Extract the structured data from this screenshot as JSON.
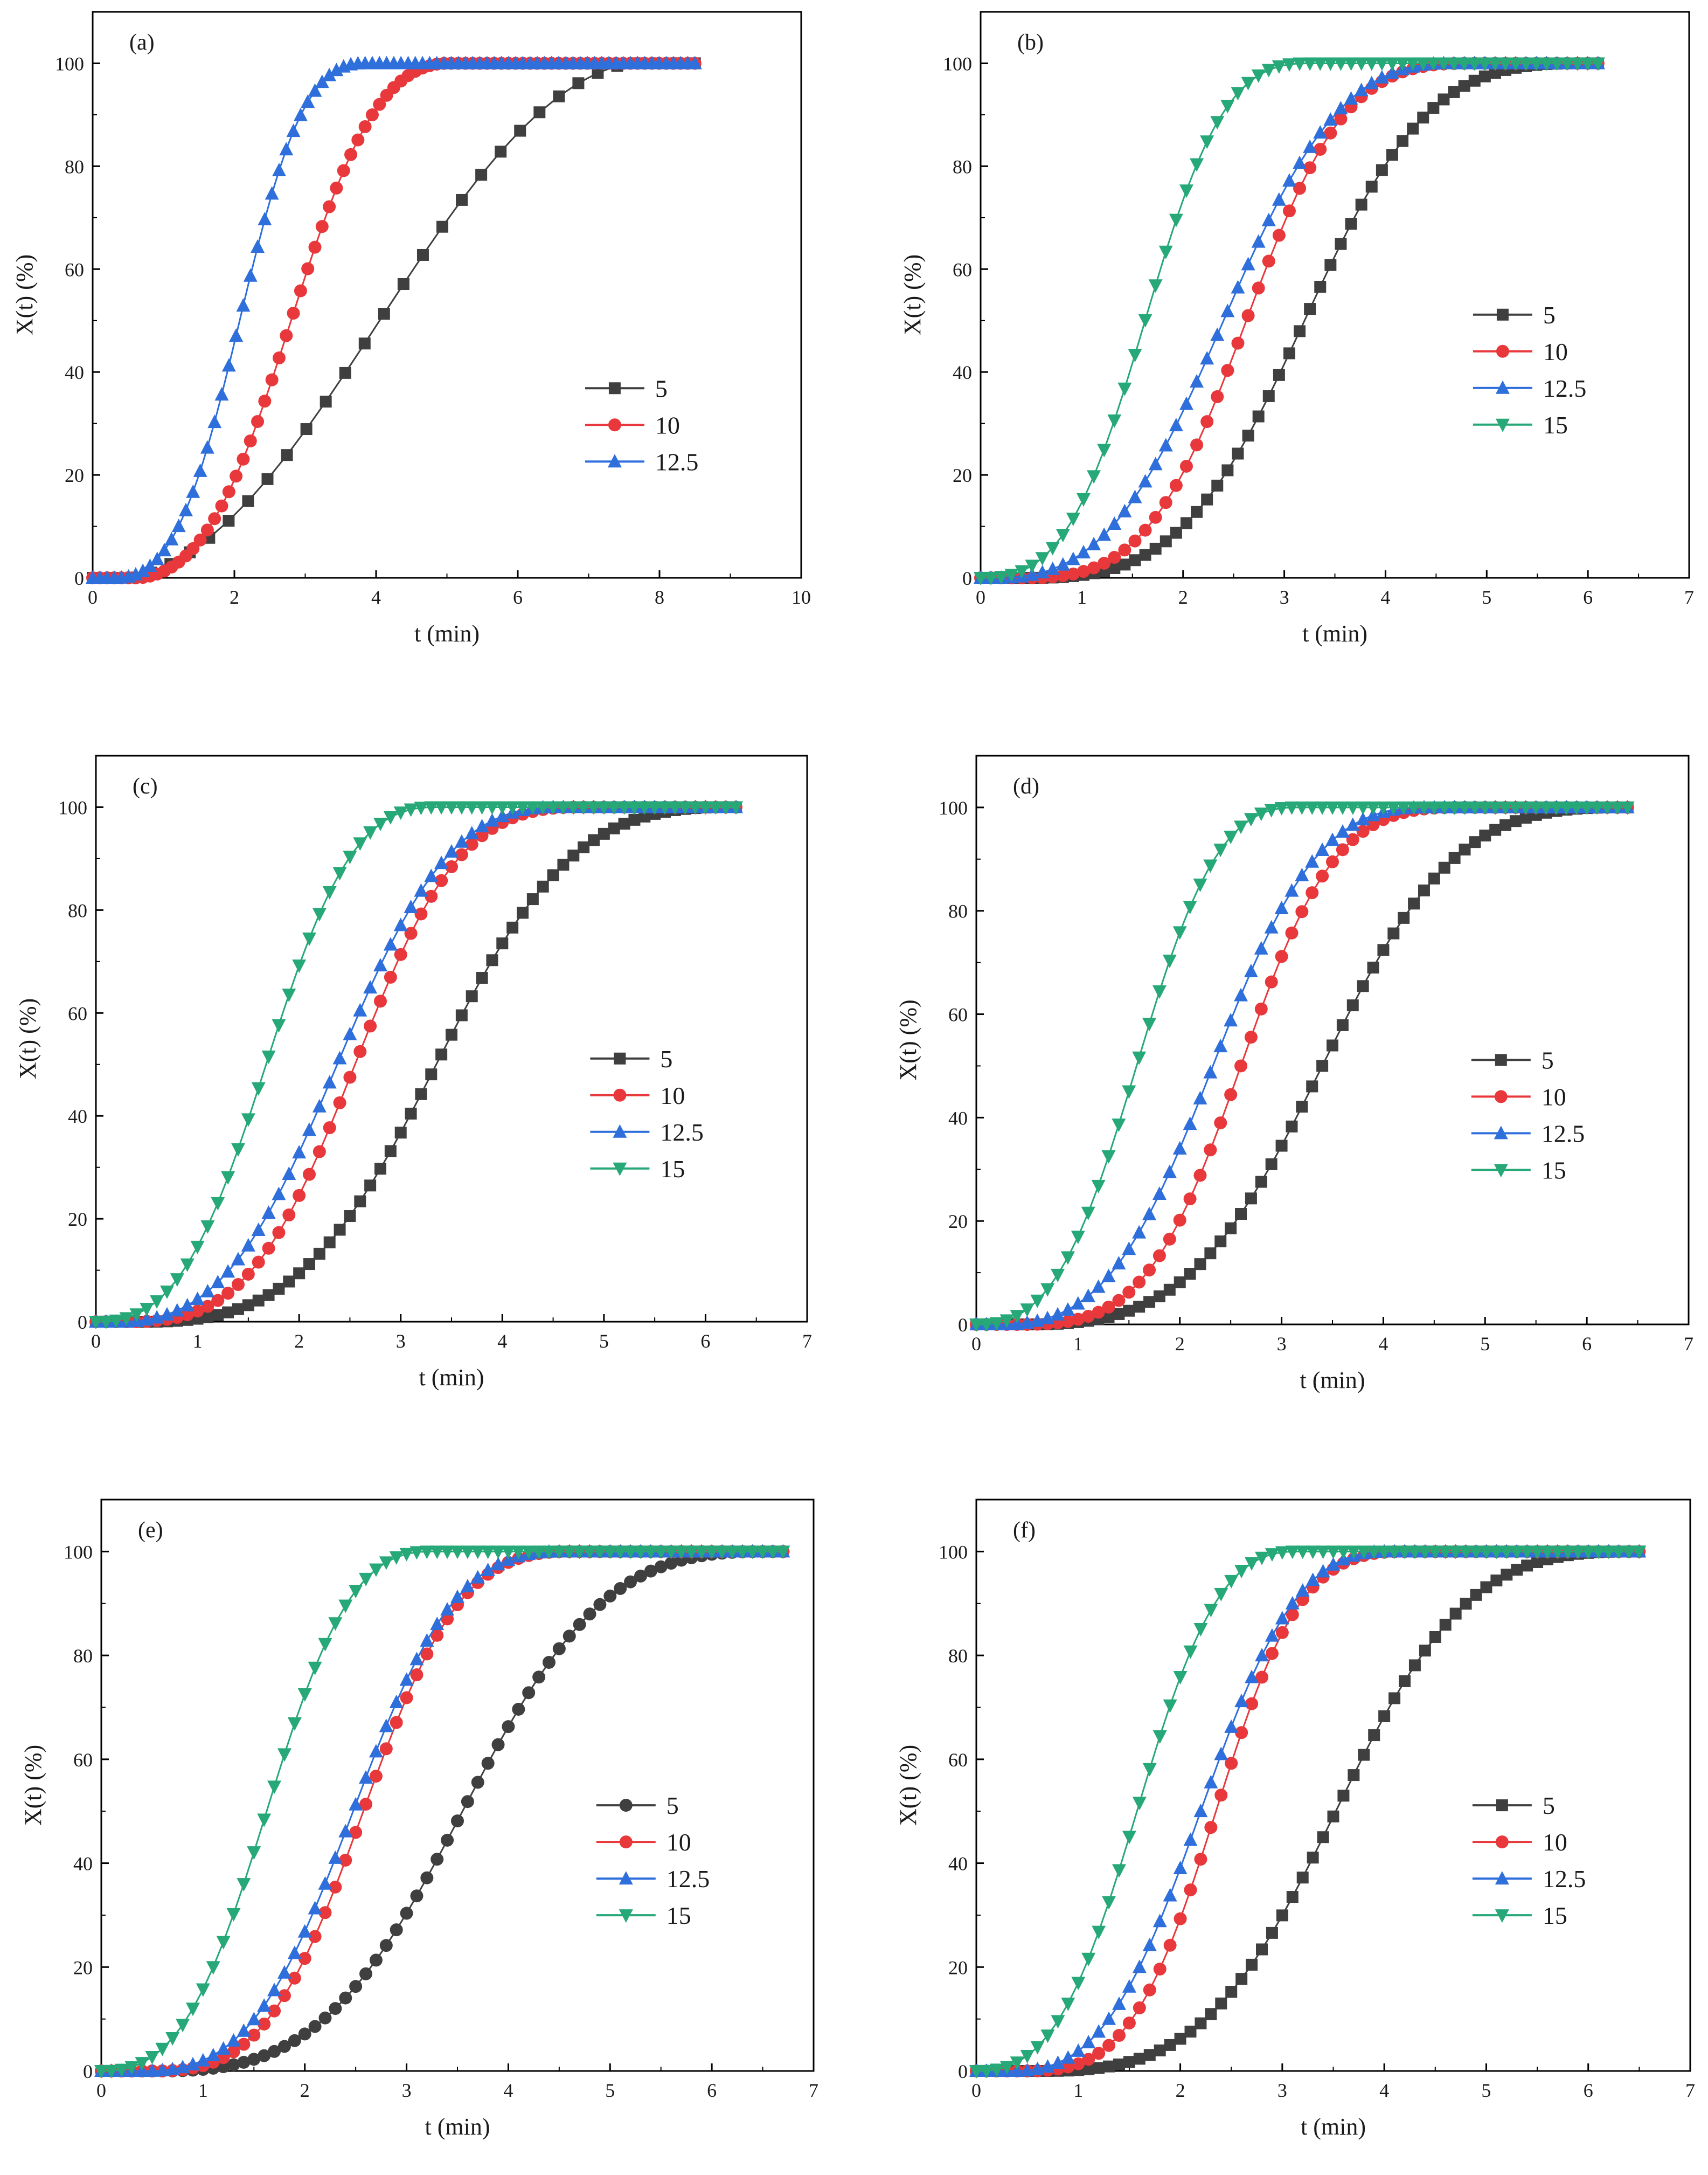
{
  "colors": {
    "s5": "#3f3f3f",
    "s10": "#e8383b",
    "s12_5": "#2f6fdc",
    "s15": "#27a878"
  },
  "chart_data": [
    {
      "type": "line",
      "panel_label": "(a)",
      "xlabel": "t (min)",
      "ylabel": "X(t) (%)",
      "xlim": [
        0,
        10
      ],
      "ylim": [
        0,
        110
      ],
      "xticks": [
        "0",
        "2",
        "4",
        "6",
        "8",
        "10"
      ],
      "yticks": [
        "0",
        "20",
        "40",
        "60",
        "80",
        "100"
      ],
      "x_step": 0.1,
      "legend_position": "center-right",
      "series": [
        {
          "name": "5",
          "marker": "square",
          "color": "#3f3f3f",
          "start": 0.5,
          "end": 7.6,
          "shape": 1.5,
          "points": 32,
          "x_end": 8.5
        },
        {
          "name": "10",
          "marker": "circle",
          "color": "#e8383b",
          "start": 0.6,
          "end": 5.0,
          "shape": 1.9,
          "points": 85,
          "x_end": 8.5
        },
        {
          "name": "12.5",
          "marker": "triangle-up",
          "color": "#2f6fdc",
          "start": 0.35,
          "end": 3.8,
          "shape": 2.0,
          "points": 85,
          "x_end": 8.5
        }
      ]
    },
    {
      "type": "line",
      "panel_label": "(b)",
      "xlabel": "t (min)",
      "ylabel": "X(t) (%)",
      "xlim": [
        0,
        7
      ],
      "ylim": [
        0,
        110
      ],
      "xticks": [
        "0",
        "1",
        "2",
        "3",
        "4",
        "5",
        "6",
        "7"
      ],
      "yticks": [
        "0",
        "20",
        "40",
        "60",
        "80",
        "100"
      ],
      "x_step": 0.1,
      "legend_position": "center-right",
      "series": [
        {
          "name": "5",
          "marker": "square",
          "color": "#3f3f3f",
          "start": 0.5,
          "end": 5.9,
          "shape": 2.3,
          "points": 61,
          "x_end": 6.1
        },
        {
          "name": "10",
          "marker": "circle",
          "color": "#e8383b",
          "start": 0.45,
          "end": 4.8,
          "shape": 2.3,
          "points": 61,
          "x_end": 6.1
        },
        {
          "name": "12.5",
          "marker": "triangle-up",
          "color": "#2f6fdc",
          "start": 0.2,
          "end": 4.6,
          "shape": 2.0,
          "points": 61,
          "x_end": 6.1
        },
        {
          "name": "15",
          "marker": "triangle-down",
          "color": "#27a878",
          "start": 0.05,
          "end": 3.2,
          "shape": 2.1,
          "points": 61,
          "x_end": 6.1
        }
      ]
    },
    {
      "type": "line",
      "panel_label": "(c)",
      "xlabel": "t (min)",
      "ylabel": "X(t) (%)",
      "xlim": [
        0,
        7
      ],
      "ylim": [
        0,
        110
      ],
      "xticks": [
        "0",
        "1",
        "2",
        "3",
        "4",
        "5",
        "6",
        "7"
      ],
      "yticks": [
        "0",
        "20",
        "40",
        "60",
        "80",
        "100"
      ],
      "x_step": 0.1,
      "legend_position": "center-right",
      "series": [
        {
          "name": "5",
          "marker": "square",
          "color": "#3f3f3f",
          "start": 0.5,
          "end": 6.2,
          "shape": 2.2,
          "points": 64,
          "x_end": 6.3
        },
        {
          "name": "10",
          "marker": "circle",
          "color": "#e8383b",
          "start": 0.35,
          "end": 4.75,
          "shape": 2.2,
          "points": 64,
          "x_end": 6.3
        },
        {
          "name": "12.5",
          "marker": "triangle-up",
          "color": "#2f6fdc",
          "start": 0.25,
          "end": 4.5,
          "shape": 2.0,
          "points": 64,
          "x_end": 6.3
        },
        {
          "name": "15",
          "marker": "triangle-down",
          "color": "#27a878",
          "start": 0.05,
          "end": 3.3,
          "shape": 2.0,
          "points": 64,
          "x_end": 6.3
        }
      ]
    },
    {
      "type": "line",
      "panel_label": "(d)",
      "xlabel": "t (min)",
      "ylabel": "X(t) (%)",
      "xlim": [
        0,
        7
      ],
      "ylim": [
        0,
        110
      ],
      "xticks": [
        "0",
        "1",
        "2",
        "3",
        "4",
        "5",
        "6",
        "7"
      ],
      "yticks": [
        "0",
        "20",
        "40",
        "60",
        "80",
        "100"
      ],
      "x_step": 0.1,
      "legend_position": "center-right",
      "series": [
        {
          "name": "5",
          "marker": "square",
          "color": "#3f3f3f",
          "start": 0.5,
          "end": 6.3,
          "shape": 2.3,
          "points": 65,
          "x_end": 6.4
        },
        {
          "name": "10",
          "marker": "circle",
          "color": "#e8383b",
          "start": 0.45,
          "end": 4.75,
          "shape": 2.4,
          "points": 65,
          "x_end": 6.4
        },
        {
          "name": "12.5",
          "marker": "triangle-up",
          "color": "#2f6fdc",
          "start": 0.25,
          "end": 4.4,
          "shape": 2.1,
          "points": 65,
          "x_end": 6.4
        },
        {
          "name": "15",
          "marker": "triangle-down",
          "color": "#27a878",
          "start": 0.05,
          "end": 3.1,
          "shape": 2.0,
          "points": 65,
          "x_end": 6.4
        }
      ]
    },
    {
      "type": "line",
      "panel_label": "(e)",
      "xlabel": "t (min)",
      "ylabel": "X(t) (%)",
      "xlim": [
        0,
        7
      ],
      "ylim": [
        0,
        110
      ],
      "xticks": [
        "0",
        "1",
        "2",
        "3",
        "4",
        "5",
        "6",
        "7"
      ],
      "yticks": [
        "0",
        "20",
        "40",
        "60",
        "80",
        "100"
      ],
      "x_step": 0.1,
      "legend_position": "center-right",
      "series": [
        {
          "name": "5",
          "marker": "circle",
          "color": "#3f3f3f",
          "start": 0.6,
          "end": 6.5,
          "shape": 2.2,
          "points": 68,
          "x_end": 6.7
        },
        {
          "name": "10",
          "marker": "circle",
          "color": "#e8383b",
          "start": 0.55,
          "end": 4.6,
          "shape": 2.2,
          "points": 68,
          "x_end": 6.7
        },
        {
          "name": "12.5",
          "marker": "triangle-up",
          "color": "#2f6fdc",
          "start": 0.45,
          "end": 4.5,
          "shape": 2.1,
          "points": 68,
          "x_end": 6.7
        },
        {
          "name": "15",
          "marker": "triangle-down",
          "color": "#27a878",
          "start": 0.05,
          "end": 3.2,
          "shape": 2.0,
          "points": 68,
          "x_end": 6.7
        }
      ]
    },
    {
      "type": "line",
      "panel_label": "(f)",
      "xlabel": "t (min)",
      "ylabel": "X(t) (%)",
      "xlim": [
        0,
        7
      ],
      "ylim": [
        0,
        110
      ],
      "xticks": [
        "0",
        "1",
        "2",
        "3",
        "4",
        "5",
        "6",
        "7"
      ],
      "yticks": [
        "0",
        "20",
        "40",
        "60",
        "80",
        "100"
      ],
      "x_step": 0.1,
      "legend_position": "center-right",
      "series": [
        {
          "name": "5",
          "marker": "square",
          "color": "#3f3f3f",
          "start": 0.65,
          "end": 6.4,
          "shape": 2.3,
          "points": 66,
          "x_end": 6.5
        },
        {
          "name": "10",
          "marker": "circle",
          "color": "#e8383b",
          "start": 0.5,
          "end": 4.2,
          "shape": 2.3,
          "points": 66,
          "x_end": 6.5
        },
        {
          "name": "12.5",
          "marker": "triangle-up",
          "color": "#2f6fdc",
          "start": 0.4,
          "end": 4.0,
          "shape": 2.0,
          "points": 66,
          "x_end": 6.5
        },
        {
          "name": "15",
          "marker": "triangle-down",
          "color": "#27a878",
          "start": 0.05,
          "end": 3.1,
          "shape": 2.0,
          "points": 66,
          "x_end": 6.5
        }
      ]
    }
  ]
}
